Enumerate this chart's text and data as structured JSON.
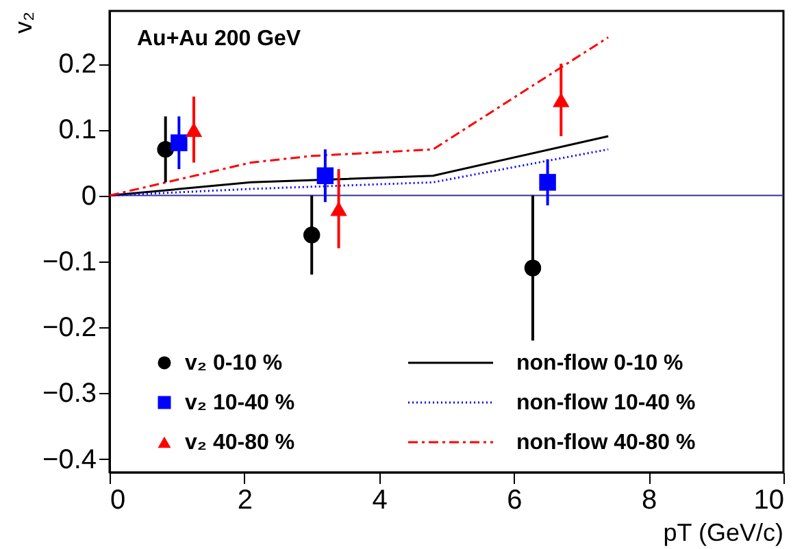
{
  "chart_data": {
    "type": "scatter",
    "xlabel": "pT (GeV/c)",
    "ylabel": "v₂",
    "annotations": [
      "Au+Au 200 GeV"
    ],
    "xlim": [
      0,
      10
    ],
    "ylim": [
      -0.42,
      0.28
    ],
    "xticks": [
      0,
      2,
      4,
      6,
      8,
      10
    ],
    "yticks": [
      -0.4,
      -0.3,
      -0.2,
      -0.1,
      {
        "value": 0,
        "label": "0"
      },
      0.1,
      0.2
    ],
    "grid": false,
    "legend": "bottom",
    "ref_lines": [
      {
        "axis": "y",
        "value": 0,
        "label": null,
        "color": "#333399"
      }
    ],
    "series": [
      {
        "name": "v₂ 0-10 %",
        "type": "scatter",
        "marker": "circle",
        "color": "#000000",
        "x": [
          0.83,
          3.0,
          6.28
        ],
        "values": [
          0.07,
          -0.06,
          -0.11
        ],
        "errors": [
          0.05,
          0.06,
          0.11
        ]
      },
      {
        "name": "v₂ 10-40 %",
        "type": "scatter",
        "marker": "square",
        "color": "#0000ff",
        "x": [
          1.03,
          3.2,
          6.5
        ],
        "values": [
          0.08,
          0.03,
          0.02
        ],
        "errors": [
          0.04,
          0.04,
          0.035
        ]
      },
      {
        "name": "v₂ 40-80 %",
        "type": "scatter",
        "marker": "triangle",
        "color": "#ff0000",
        "x": [
          1.25,
          3.4,
          6.7
        ],
        "values": [
          0.1,
          -0.02,
          0.145
        ],
        "errors": [
          0.05,
          0.06,
          0.055
        ]
      },
      {
        "name": "non-flow 0-10 %",
        "type": "line",
        "line_style": "solid",
        "color": "#000000",
        "x": [
          0,
          2.1,
          4.8,
          7.4
        ],
        "values": [
          0,
          0.02,
          0.03,
          0.09
        ]
      },
      {
        "name": "non-flow 10-40 %",
        "type": "line",
        "line_style": "dotted",
        "color": "#0000ff",
        "x": [
          0,
          2.1,
          4.8,
          7.4
        ],
        "values": [
          0,
          0.01,
          0.02,
          0.07
        ]
      },
      {
        "name": "non-flow 40-80 %",
        "type": "line",
        "line_style": "dashed",
        "color": "#ff0000",
        "x": [
          0,
          2.1,
          3.0,
          4.8,
          7.4
        ],
        "values": [
          0,
          0.05,
          0.06,
          0.07,
          0.24
        ]
      }
    ]
  }
}
